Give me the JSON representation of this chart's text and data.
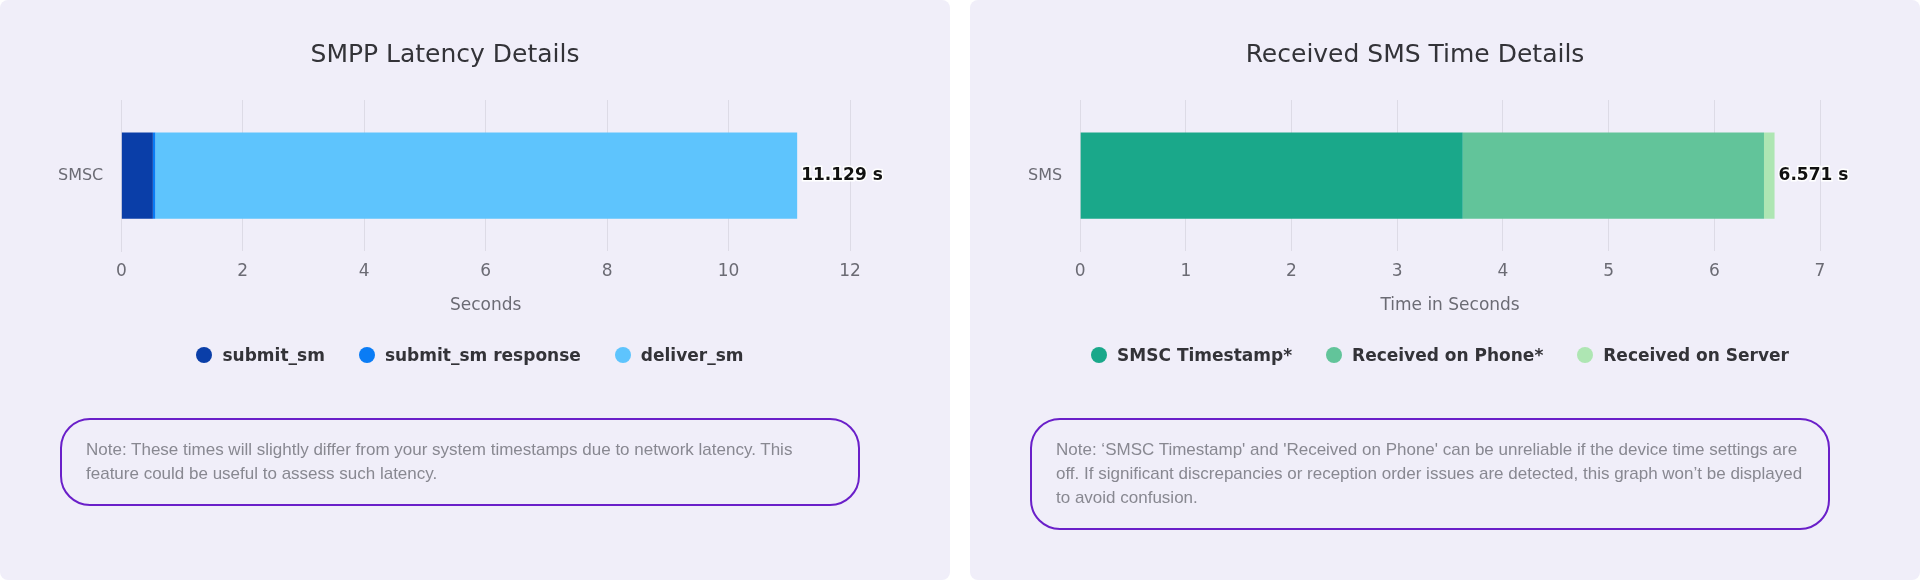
{
  "chart_data": [
    {
      "type": "bar",
      "orientation": "horizontal",
      "stacked": true,
      "title": "SMPP Latency Details",
      "xlabel": "Seconds",
      "categories": [
        "SMSC"
      ],
      "series": [
        {
          "name": "submit_sm",
          "color": "#0a3ea8",
          "values": [
            0.52
          ]
        },
        {
          "name": "submit_sm response",
          "color": "#0a7cf5",
          "values": [
            0.04
          ]
        },
        {
          "name": "deliver_sm",
          "color": "#5ec4fd",
          "values": [
            10.57
          ]
        }
      ],
      "xlim": [
        0,
        12
      ],
      "xticks": [
        0,
        2,
        4,
        6,
        8,
        10,
        12
      ],
      "grid": "x",
      "legend": "bottom",
      "totals": [
        "11.129 s"
      ],
      "annotations": [
        "Note: These times will slightly differ from your system timestamps due to network latency. This feature could be useful to assess such latency."
      ]
    },
    {
      "type": "bar",
      "orientation": "horizontal",
      "stacked": true,
      "title": "Received SMS Time Details",
      "xlabel": "Time in Seconds",
      "categories": [
        "SMS"
      ],
      "series": [
        {
          "name": "SMSC Timestamp*",
          "color": "#1aa88a",
          "values": [
            3.62
          ]
        },
        {
          "name": "Received on Phone*",
          "color": "#62c49a",
          "values": [
            2.85
          ]
        },
        {
          "name": "Received on Server",
          "color": "#aee6b3",
          "values": [
            0.1
          ]
        }
      ],
      "xlim": [
        0,
        7
      ],
      "xticks": [
        0,
        1,
        2,
        3,
        4,
        5,
        6,
        7
      ],
      "grid": "x",
      "legend": "bottom",
      "totals": [
        "6.571 s"
      ],
      "annotations": [
        "Note: ‘SMSC Timestamp' and 'Received on Phone' can be unreliable if the device time settings are off. If significant discrepancies or reception order issues are detected, this graph won’t be displayed to avoid confusion."
      ]
    }
  ]
}
